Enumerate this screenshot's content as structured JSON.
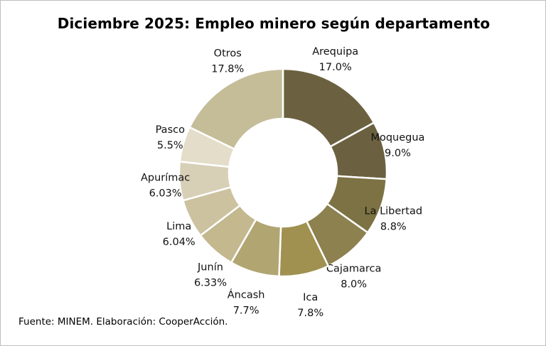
{
  "title": "Diciembre 2025: Empleo minero según departamento",
  "source": "Fuente: MINEM. Elaboración: CooperAcción.",
  "chart_data": {
    "type": "pie",
    "variant": "donut",
    "title": "Diciembre 2025: Empleo minero según departamento",
    "categories": [
      "Arequipa",
      "Moquegua",
      "La Libertad",
      "Cajamarca",
      "Ica",
      "Áncash",
      "Junín",
      "Lima",
      "Apurímac",
      "Pasco",
      "Otros"
    ],
    "values": [
      17.0,
      9.0,
      8.8,
      8.0,
      7.8,
      7.7,
      6.33,
      6.04,
      6.03,
      5.5,
      17.8
    ],
    "value_labels": [
      "17.0%",
      "9.0%",
      "8.8%",
      "8.0%",
      "7.8%",
      "7.7%",
      "6.33%",
      "6.04%",
      "6.03%",
      "5.5%",
      "17.8%"
    ],
    "colors": [
      "#6b6140",
      "#6b6140",
      "#7c7243",
      "#8c814f",
      "#a09150",
      "#b1a572",
      "#c3b88e",
      "#ccc2a0",
      "#d7d0b7",
      "#e3ddc9",
      "#c4bd98"
    ],
    "legend": "none",
    "data_labels": "outside"
  }
}
